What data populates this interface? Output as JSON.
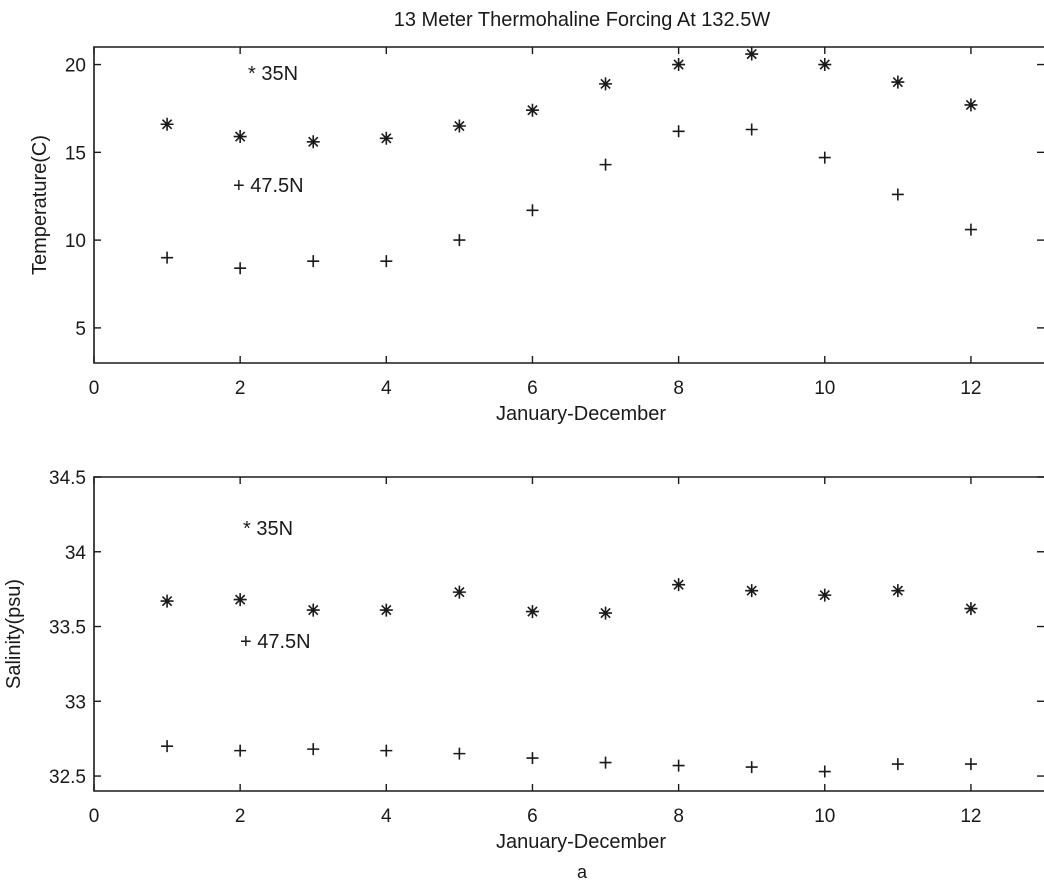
{
  "figure": {
    "title": "13 Meter Thermohaline Forcing At 132.5W",
    "caption": "a"
  },
  "chart_data": [
    {
      "type": "scatter",
      "title": "13 Meter Thermohaline Forcing At 132.5W",
      "xlabel": "January-December",
      "ylabel": "Temperature(C)",
      "xlim": [
        0,
        13
      ],
      "ylim": [
        3,
        21
      ],
      "xticks": [
        0,
        2,
        4,
        6,
        8,
        10,
        12
      ],
      "yticks": [
        5,
        10,
        15,
        20
      ],
      "legend_labels": [
        {
          "marker": "*",
          "text": "35N"
        },
        {
          "marker": "+",
          "text": "47.5N"
        }
      ],
      "series": [
        {
          "name": "35N",
          "marker": "star",
          "x": [
            1,
            2,
            3,
            4,
            5,
            6,
            7,
            8,
            9,
            10,
            11,
            12
          ],
          "values": [
            16.6,
            15.9,
            15.6,
            15.8,
            16.5,
            17.4,
            18.9,
            20.0,
            20.6,
            20.0,
            19.0,
            17.7
          ]
        },
        {
          "name": "47.5N",
          "marker": "plus",
          "x": [
            1,
            2,
            3,
            4,
            5,
            6,
            7,
            8,
            9,
            10,
            11,
            12
          ],
          "values": [
            9.0,
            8.4,
            8.8,
            8.8,
            10.0,
            11.7,
            14.3,
            16.2,
            16.3,
            14.7,
            12.6,
            10.6
          ]
        }
      ]
    },
    {
      "type": "scatter",
      "title": "",
      "xlabel": "January-December",
      "ylabel": "Salinity(psu)",
      "xlim": [
        0,
        13
      ],
      "ylim": [
        32.4,
        34.5
      ],
      "xticks": [
        0,
        2,
        4,
        6,
        8,
        10,
        12
      ],
      "yticks": [
        32.5,
        33,
        33.5,
        34,
        34.5
      ],
      "legend_labels": [
        {
          "marker": "*",
          "text": "35N"
        },
        {
          "marker": "+",
          "text": "47.5N"
        }
      ],
      "series": [
        {
          "name": "35N",
          "marker": "star",
          "x": [
            1,
            2,
            3,
            4,
            5,
            6,
            7,
            8,
            9,
            10,
            11,
            12
          ],
          "values": [
            33.67,
            33.68,
            33.61,
            33.61,
            33.73,
            33.6,
            33.59,
            33.78,
            33.74,
            33.71,
            33.74,
            33.62
          ]
        },
        {
          "name": "47.5N",
          "marker": "plus",
          "x": [
            1,
            2,
            3,
            4,
            5,
            6,
            7,
            8,
            9,
            10,
            11,
            12
          ],
          "values": [
            32.7,
            32.67,
            32.68,
            32.67,
            32.65,
            32.62,
            32.59,
            32.57,
            32.56,
            32.53,
            32.58,
            32.58
          ]
        }
      ]
    }
  ]
}
